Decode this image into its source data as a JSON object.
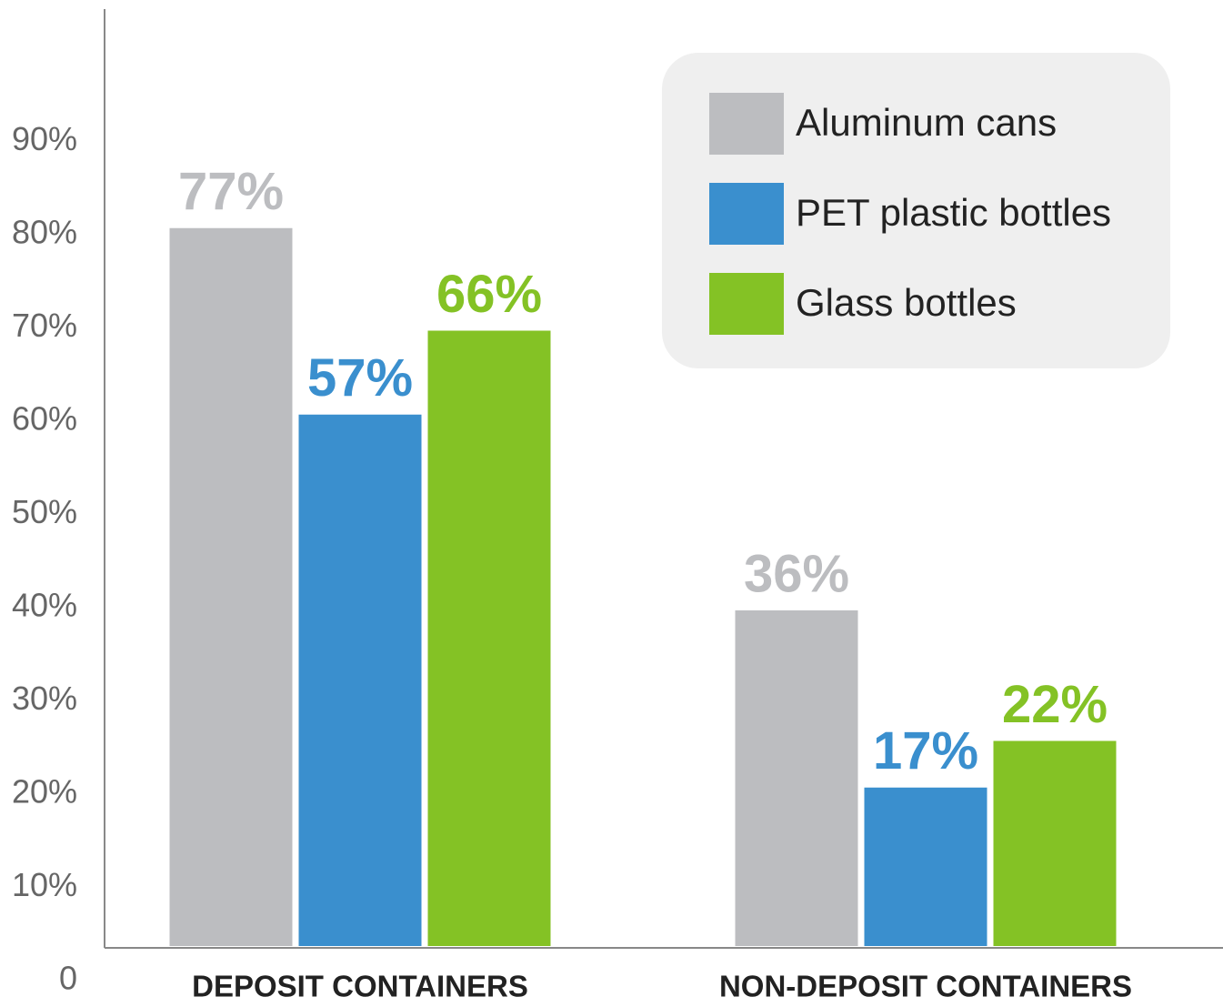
{
  "chart_data": {
    "type": "bar",
    "categories": [
      "DEPOSIT CONTAINERS",
      "NON-DEPOSIT CONTAINERS"
    ],
    "series": [
      {
        "name": "Aluminum cans",
        "color": "#bcbdc0",
        "values": [
          77,
          36
        ],
        "value_labels": [
          "77%",
          "36%"
        ]
      },
      {
        "name": "PET plastic bottles",
        "color": "#3a8fce",
        "values": [
          57,
          17
        ],
        "value_labels": [
          "57%",
          "17%"
        ]
      },
      {
        "name": "Glass bottles",
        "color": "#84c225",
        "values": [
          66,
          22
        ],
        "value_labels": [
          "66%",
          "22%"
        ]
      }
    ],
    "ylim": [
      0,
      100
    ],
    "yticks": [
      0,
      {
        "value": 10,
        "label": "10%"
      },
      {
        "value": 20,
        "label": "20%"
      },
      {
        "value": 30,
        "label": "30%"
      },
      {
        "value": 40,
        "label": "40%"
      },
      {
        "value": 50,
        "label": "50%"
      },
      {
        "value": 60,
        "label": "60%"
      },
      {
        "value": 70,
        "label": "70%"
      },
      {
        "value": 80,
        "label": "80%"
      },
      {
        "value": 90,
        "label": "90%"
      }
    ],
    "legend": "upper right",
    "grid": false
  }
}
